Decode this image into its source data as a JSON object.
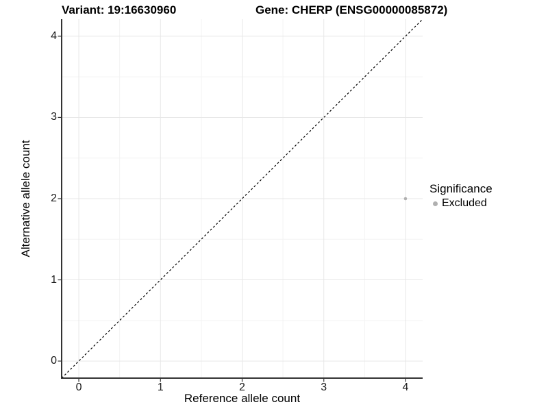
{
  "title": {
    "variant_label": "Variant: 19:16630960",
    "gene_label": "Gene: CHERP (ENSG00000085872)"
  },
  "axes": {
    "x": {
      "label": "Reference allele count",
      "tick_labels": [
        "0",
        "1",
        "2",
        "3",
        "4"
      ]
    },
    "y": {
      "label": "Alternative allele count",
      "tick_labels": [
        "0",
        "1",
        "2",
        "3",
        "4"
      ]
    }
  },
  "legend": {
    "title": "Significance",
    "items": [
      {
        "label": "Excluded",
        "color": "#b0b0b0"
      }
    ]
  },
  "chart_data": {
    "type": "scatter",
    "title": "Variant: 19:16630960   Gene: CHERP (ENSG00000085872)",
    "xlabel": "Reference allele count",
    "ylabel": "Alternative allele count",
    "xlim": [
      -0.21,
      4.21
    ],
    "ylim": [
      -0.21,
      4.21
    ],
    "x_ticks": [
      0,
      1,
      2,
      3,
      4
    ],
    "y_ticks": [
      0,
      1,
      2,
      3,
      4
    ],
    "minor_grid_ticks": [
      0.5,
      1.5,
      2.5,
      3.5
    ],
    "grid": true,
    "legend_position": "right",
    "series": [
      {
        "name": "Excluded",
        "color": "#b0b0b0",
        "points": [
          {
            "x": 4,
            "y": 2
          }
        ]
      }
    ],
    "reference_line": {
      "type": "identity y=x",
      "style": "dashed",
      "color": "#000000"
    }
  },
  "colors": {
    "background": "#ffffff",
    "grid_major": "#e7e7e7",
    "grid_minor": "#f3f3f3",
    "axis_line": "#333333",
    "tick_mark": "#333333",
    "point": "#b0b0b0"
  }
}
